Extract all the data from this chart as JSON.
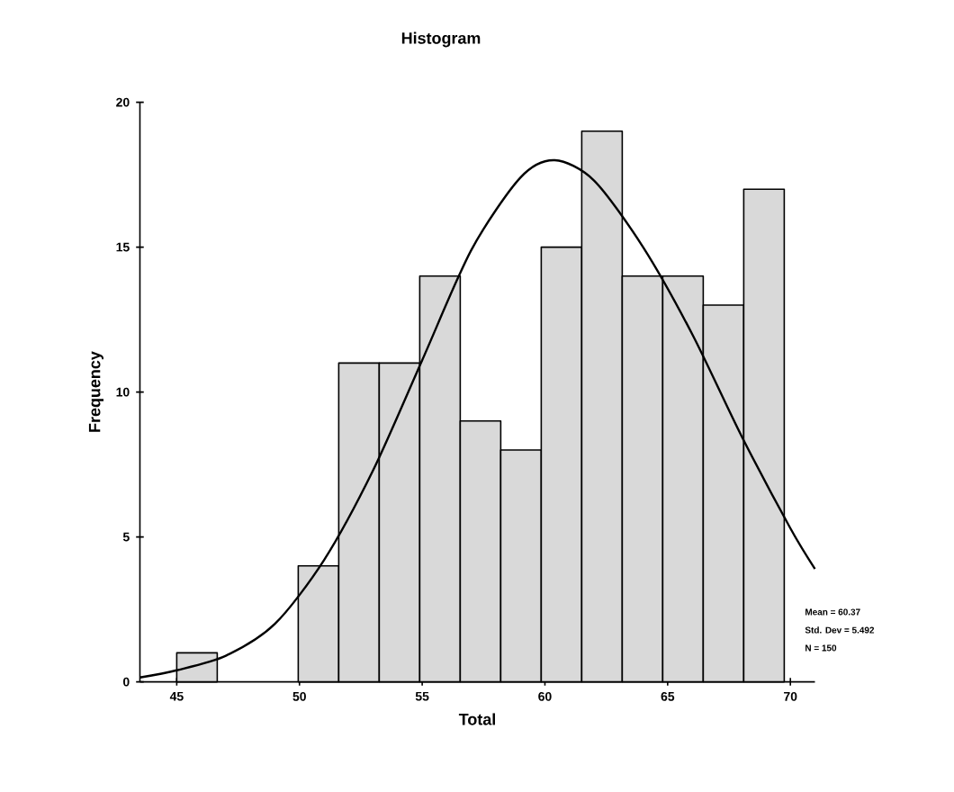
{
  "chart_data": {
    "type": "histogram",
    "title": "Histogram",
    "xlabel": "Total",
    "ylabel": "Frequency",
    "xlim": [
      43.5,
      71
    ],
    "ylim": [
      0,
      20
    ],
    "xticks": [
      45,
      50,
      55,
      60,
      65,
      70
    ],
    "yticks": [
      0,
      5,
      10,
      15,
      20
    ],
    "grid": false,
    "series": [
      {
        "color": "#d9d9d9",
        "bins": [
          45,
          46.65,
          48.3,
          49.95,
          51.6,
          53.25,
          54.9,
          56.55,
          58.2,
          59.85,
          61.5,
          63.15,
          64.8,
          66.45,
          68.1,
          69.75
        ],
        "values": [
          1,
          0,
          0,
          4,
          11,
          11,
          14,
          9,
          8,
          15,
          19,
          14,
          14,
          13,
          17
        ]
      },
      {
        "type": "line",
        "color": "#000000",
        "x": [
          43.5,
          45,
          47,
          49,
          51,
          53,
          55,
          57,
          59,
          60.4,
          62,
          64,
          66,
          68,
          70,
          71
        ],
        "values": [
          0.15,
          0.4,
          0.9,
          2,
          4.2,
          7.3,
          11.1,
          14.9,
          17.4,
          18,
          17.3,
          15,
          12,
          8.5,
          5.3,
          3.9
        ]
      }
    ],
    "annotations": [
      "Mean = 60.37",
      "Std. Dev = 5.492",
      "N = 150"
    ]
  }
}
